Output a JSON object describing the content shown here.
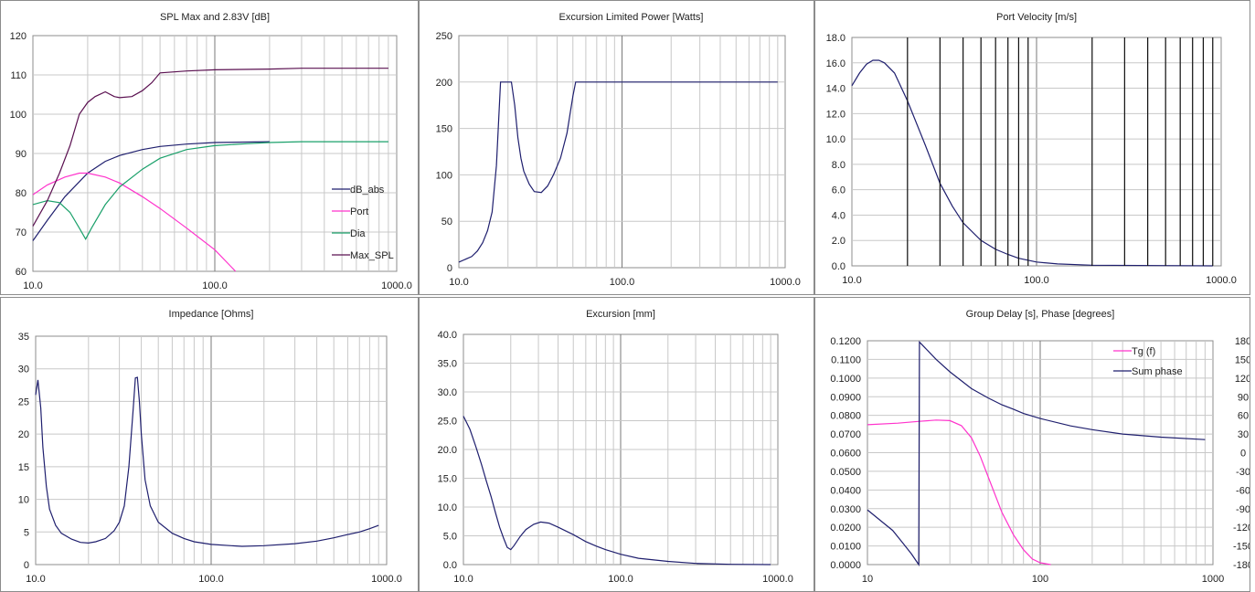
{
  "chart_data": [
    {
      "id": "spl",
      "type": "line",
      "title": "SPL Max and 2.83V [dB]",
      "xscale": "log",
      "xlim": [
        10,
        1000
      ],
      "ylim": [
        60,
        120
      ],
      "yticks": [
        60,
        70,
        80,
        90,
        100,
        110,
        120
      ],
      "ytick_labels": [
        "60",
        "70",
        "80",
        "90",
        "100",
        "110",
        "120"
      ],
      "xticks": [
        10,
        100,
        1000
      ],
      "xtick_labels": [
        "10.0",
        "100.0",
        "1000.0"
      ],
      "grid": true,
      "legend": "right",
      "series": [
        {
          "name": "dB_abs",
          "color": "#1f1f6e",
          "points": [
            [
              10,
              67.8
            ],
            [
              12,
              73
            ],
            [
              15,
              79
            ],
            [
              20,
              85
            ],
            [
              25,
              88
            ],
            [
              30,
              89.5
            ],
            [
              40,
              91
            ],
            [
              50,
              91.8
            ],
            [
              70,
              92.4
            ],
            [
              100,
              92.8
            ],
            [
              150,
              92.9
            ],
            [
              200,
              93
            ]
          ]
        },
        {
          "name": "Port",
          "color": "#ff33cc",
          "points": [
            [
              10,
              79.5
            ],
            [
              12,
              82
            ],
            [
              15,
              84
            ],
            [
              18,
              85
            ],
            [
              20,
              85
            ],
            [
              25,
              84
            ],
            [
              30,
              82.5
            ],
            [
              40,
              79
            ],
            [
              50,
              76
            ],
            [
              70,
              71
            ],
            [
              100,
              65.5
            ],
            [
              130,
              60
            ]
          ]
        },
        {
          "name": "Dia",
          "color": "#1aa06a",
          "points": [
            [
              10,
              77
            ],
            [
              12,
              78
            ],
            [
              14,
              77.5
            ],
            [
              16,
              75
            ],
            [
              18,
              71
            ],
            [
              19.5,
              68.2
            ],
            [
              21,
              71
            ],
            [
              25,
              77
            ],
            [
              30,
              81.5
            ],
            [
              40,
              86
            ],
            [
              50,
              88.8
            ],
            [
              70,
              91
            ],
            [
              100,
              92
            ],
            [
              150,
              92.5
            ],
            [
              200,
              92.8
            ],
            [
              300,
              93
            ],
            [
              500,
              93
            ],
            [
              900,
              93
            ]
          ]
        },
        {
          "name": "Max_SPL",
          "color": "#5a1050",
          "points": [
            [
              10,
              71.5
            ],
            [
              12,
              78
            ],
            [
              14,
              85
            ],
            [
              16,
              92
            ],
            [
              18,
              100
            ],
            [
              20,
              103
            ],
            [
              22,
              104.5
            ],
            [
              25,
              105.7
            ],
            [
              28,
              104.5
            ],
            [
              30,
              104.2
            ],
            [
              35,
              104.5
            ],
            [
              40,
              106
            ],
            [
              45,
              108
            ],
            [
              50,
              110.5
            ],
            [
              70,
              111
            ],
            [
              100,
              111.3
            ],
            [
              200,
              111.5
            ],
            [
              300,
              111.7
            ],
            [
              900,
              111.7
            ]
          ]
        }
      ]
    },
    {
      "id": "power",
      "type": "line",
      "title": "Excursion Limited Power [Watts]",
      "xscale": "log",
      "xlim": [
        10,
        1000
      ],
      "ylim": [
        0,
        250
      ],
      "yticks": [
        0,
        50,
        100,
        150,
        200,
        250
      ],
      "ytick_labels": [
        "0",
        "50",
        "100",
        "150",
        "200",
        "250"
      ],
      "xticks": [
        10,
        100,
        1000
      ],
      "xtick_labels": [
        "10.0",
        "100.0",
        "1000.0"
      ],
      "grid": true,
      "series": [
        {
          "color": "#1f1f6e",
          "points": [
            [
              10,
              6
            ],
            [
              12,
              12
            ],
            [
              13,
              18
            ],
            [
              14,
              27
            ],
            [
              15,
              40
            ],
            [
              16,
              60
            ],
            [
              17,
              110
            ],
            [
              18,
              200
            ],
            [
              21,
              200
            ],
            [
              22,
              175
            ],
            [
              23,
              140
            ],
            [
              24,
              118
            ],
            [
              25,
              104
            ],
            [
              27,
              90
            ],
            [
              29,
              82
            ],
            [
              32,
              81
            ],
            [
              35,
              88
            ],
            [
              38,
              100
            ],
            [
              42,
              118
            ],
            [
              46,
              145
            ],
            [
              50,
              185
            ],
            [
              52,
              200
            ],
            [
              900,
              200
            ]
          ]
        }
      ]
    },
    {
      "id": "port_velocity",
      "type": "line",
      "title": "Port Velocity [m/s]",
      "xscale": "log",
      "xlim": [
        10,
        1000
      ],
      "ylim": [
        0,
        18
      ],
      "yticks": [
        0,
        2,
        4,
        6,
        8,
        10,
        12,
        14,
        16,
        18
      ],
      "ytick_labels": [
        "0.0",
        "2.0",
        "4.0",
        "6.0",
        "8.0",
        "10.0",
        "12.0",
        "14.0",
        "16.0",
        "18.0"
      ],
      "xticks": [
        10,
        100,
        1000
      ],
      "xtick_labels": [
        "10.0",
        "100.0",
        "1000.0"
      ],
      "grid": true,
      "series": [
        {
          "color": "#1f1f6e",
          "points": [
            [
              10,
              14.2
            ],
            [
              11,
              15.2
            ],
            [
              12,
              15.9
            ],
            [
              13,
              16.2
            ],
            [
              14,
              16.2
            ],
            [
              15,
              16
            ],
            [
              17,
              15.2
            ],
            [
              20,
              13
            ],
            [
              25,
              9.5
            ],
            [
              30,
              6.5
            ],
            [
              35,
              4.7
            ],
            [
              40,
              3.4
            ],
            [
              50,
              2
            ],
            [
              60,
              1.3
            ],
            [
              70,
              0.9
            ],
            [
              80,
              0.6
            ],
            [
              100,
              0.3
            ],
            [
              130,
              0.15
            ],
            [
              200,
              0.05
            ],
            [
              900,
              0.0
            ]
          ]
        }
      ]
    },
    {
      "id": "impedance",
      "type": "line",
      "title": "Impedance [Ohms]",
      "xscale": "log",
      "xlim": [
        10,
        1000
      ],
      "ylim": [
        0,
        35
      ],
      "yticks": [
        0,
        5,
        10,
        15,
        20,
        25,
        30,
        35
      ],
      "ytick_labels": [
        "0",
        "5",
        "10",
        "15",
        "20",
        "25",
        "30",
        "35"
      ],
      "xticks": [
        10,
        100,
        1000
      ],
      "xtick_labels": [
        "10.0",
        "100.0",
        "1000.0"
      ],
      "grid": true,
      "series": [
        {
          "color": "#1f1f6e",
          "points": [
            [
              10,
              26
            ],
            [
              10.3,
              28.3
            ],
            [
              10.7,
              24
            ],
            [
              11,
              18
            ],
            [
              11.5,
              12
            ],
            [
              12,
              8.5
            ],
            [
              13,
              6
            ],
            [
              14,
              4.8
            ],
            [
              16,
              3.9
            ],
            [
              18,
              3.4
            ],
            [
              20,
              3.3
            ],
            [
              22,
              3.5
            ],
            [
              25,
              4
            ],
            [
              28,
              5.2
            ],
            [
              30,
              6.5
            ],
            [
              32,
              9
            ],
            [
              34,
              15
            ],
            [
              36,
              24
            ],
            [
              37,
              28.6
            ],
            [
              38,
              28.7
            ],
            [
              39,
              25
            ],
            [
              40,
              20
            ],
            [
              42,
              13
            ],
            [
              45,
              9
            ],
            [
              50,
              6.5
            ],
            [
              60,
              4.8
            ],
            [
              70,
              4
            ],
            [
              80,
              3.5
            ],
            [
              100,
              3.1
            ],
            [
              130,
              2.9
            ],
            [
              150,
              2.8
            ],
            [
              200,
              2.9
            ],
            [
              300,
              3.2
            ],
            [
              400,
              3.6
            ],
            [
              500,
              4.1
            ],
            [
              600,
              4.6
            ],
            [
              700,
              5
            ],
            [
              800,
              5.5
            ],
            [
              900,
              6
            ]
          ]
        }
      ]
    },
    {
      "id": "excursion",
      "type": "line",
      "title": "Excursion [mm]",
      "xscale": "log",
      "xlim": [
        10,
        1000
      ],
      "ylim": [
        0,
        40
      ],
      "yticks": [
        0,
        5,
        10,
        15,
        20,
        25,
        30,
        35,
        40
      ],
      "ytick_labels": [
        "0.0",
        "5.0",
        "10.0",
        "15.0",
        "20.0",
        "25.0",
        "30.0",
        "35.0",
        "40.0"
      ],
      "xticks": [
        10,
        100,
        1000
      ],
      "xtick_labels": [
        "10.0",
        "100.0",
        "1000.0"
      ],
      "grid": true,
      "series": [
        {
          "color": "#1f1f6e",
          "points": [
            [
              10,
              25.8
            ],
            [
              11,
              23.5
            ],
            [
              12,
              20.5
            ],
            [
              13,
              17.5
            ],
            [
              14,
              14.5
            ],
            [
              15,
              11.8
            ],
            [
              16,
              9
            ],
            [
              17,
              6.5
            ],
            [
              18,
              4.6
            ],
            [
              19,
              3
            ],
            [
              20,
              2.6
            ],
            [
              21,
              3.3
            ],
            [
              23,
              4.9
            ],
            [
              25,
              6.1
            ],
            [
              28,
              7
            ],
            [
              31,
              7.4
            ],
            [
              35,
              7.2
            ],
            [
              40,
              6.5
            ],
            [
              50,
              5.2
            ],
            [
              60,
              4
            ],
            [
              70,
              3.2
            ],
            [
              80,
              2.6
            ],
            [
              100,
              1.8
            ],
            [
              130,
              1.1
            ],
            [
              200,
              0.55
            ],
            [
              300,
              0.2
            ],
            [
              500,
              0.05
            ],
            [
              900,
              0.0
            ]
          ]
        }
      ]
    },
    {
      "id": "group_delay",
      "type": "line",
      "title": "Group Delay [s], Phase [degrees]",
      "xscale": "log",
      "xlim": [
        10,
        1000
      ],
      "ylim": [
        0,
        0.12
      ],
      "yticks": [
        0,
        0.01,
        0.02,
        0.03,
        0.04,
        0.05,
        0.06,
        0.07,
        0.08,
        0.09,
        0.1,
        0.11,
        0.12
      ],
      "ytick_labels": [
        "0.0000",
        "0.0100",
        "0.0200",
        "0.0300",
        "0.0400",
        "0.0500",
        "0.0600",
        "0.0700",
        "0.0800",
        "0.0900",
        "0.1000",
        "0.1100",
        "0.1200"
      ],
      "y2lim": [
        -180,
        180
      ],
      "y2ticks": [
        -180,
        -150,
        -120,
        -90,
        -60,
        -30,
        0,
        30,
        60,
        90,
        120,
        150,
        180
      ],
      "y2tick_labels": [
        "-180",
        "-150",
        "-120",
        "-90",
        "-60",
        "-30",
        "0",
        "30",
        "60",
        "90",
        "120",
        "150",
        "180"
      ],
      "xticks": [
        10,
        100,
        1000
      ],
      "xtick_labels": [
        "10",
        "100",
        "1000"
      ],
      "grid": true,
      "legend": "top-right",
      "series": [
        {
          "name": "Tg (f)",
          "color": "#ff33cc",
          "axis": "y",
          "points": [
            [
              10,
              0.075
            ],
            [
              15,
              0.0758
            ],
            [
              20,
              0.0768
            ],
            [
              25,
              0.0775
            ],
            [
              30,
              0.0772
            ],
            [
              35,
              0.0745
            ],
            [
              40,
              0.068
            ],
            [
              45,
              0.058
            ],
            [
              50,
              0.047
            ],
            [
              60,
              0.028
            ],
            [
              70,
              0.016
            ],
            [
              80,
              0.008
            ],
            [
              90,
              0.003
            ],
            [
              100,
              0.001
            ],
            [
              115,
              0.0
            ]
          ]
        },
        {
          "name": "Sum phase",
          "color": "#1f1f6e",
          "axis": "y2",
          "points": [
            [
              10,
              -92
            ],
            [
              12,
              -110
            ],
            [
              14,
              -125
            ],
            [
              16,
              -145
            ],
            [
              18,
              -163
            ],
            [
              19.8,
              -180
            ],
            [
              20,
              178
            ],
            [
              22,
              166
            ],
            [
              25,
              150
            ],
            [
              30,
              130
            ],
            [
              40,
              103
            ],
            [
              50,
              88
            ],
            [
              60,
              77
            ],
            [
              70,
              70
            ],
            [
              80,
              63
            ],
            [
              100,
              55
            ],
            [
              150,
              43
            ],
            [
              200,
              37
            ],
            [
              300,
              30
            ],
            [
              500,
              25
            ],
            [
              900,
              21
            ]
          ]
        }
      ]
    }
  ]
}
